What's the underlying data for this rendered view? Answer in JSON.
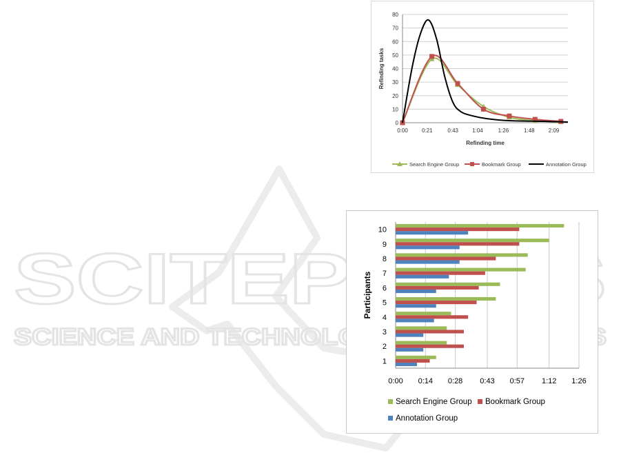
{
  "watermark": {
    "main": "SCITEPRESS",
    "sub": "SCIENCE AND TECHNOLOGY PUBLICATIONS"
  },
  "chart_data": [
    {
      "type": "line",
      "title": "",
      "xlabel": "Refinding time",
      "ylabel": "Refinding tasks",
      "x_ticks": [
        "0:00",
        "0:21",
        "0:43",
        "1:04",
        "1:26",
        "1:48",
        "2:09"
      ],
      "y_ticks": [
        0,
        10,
        20,
        30,
        40,
        50,
        60,
        70,
        80
      ],
      "xlim": [
        "0:00",
        "2:21"
      ],
      "ylim": [
        0,
        80
      ],
      "grid": true,
      "legend": "bottom",
      "series": [
        {
          "name": "Search Engine Group",
          "color": "#9bbb59",
          "marker": "triangle",
          "points": [
            [
              "0:00",
              0
            ],
            [
              "0:25",
              47
            ],
            [
              "0:47",
              28
            ],
            [
              "1:09",
              12
            ],
            [
              "1:31",
              4
            ],
            [
              "1:53",
              1.5
            ],
            [
              "2:15",
              0.5
            ]
          ]
        },
        {
          "name": "Bookmark Group",
          "color": "#c0504d",
          "marker": "square",
          "points": [
            [
              "0:00",
              0
            ],
            [
              "0:25",
              49
            ],
            [
              "0:47",
              29
            ],
            [
              "1:09",
              10
            ],
            [
              "1:31",
              5
            ],
            [
              "1:53",
              2.5
            ],
            [
              "2:15",
              1
            ]
          ]
        },
        {
          "name": "Annotation Group",
          "color": "#000000",
          "marker": "none",
          "points": [
            [
              "0:00",
              0
            ],
            [
              "0:08",
              40
            ],
            [
              "0:15",
              65
            ],
            [
              "0:22",
              76
            ],
            [
              "0:29",
              62
            ],
            [
              "0:36",
              34
            ],
            [
              "0:43",
              15
            ],
            [
              "0:50",
              8
            ],
            [
              "1:00",
              5
            ],
            [
              "1:12",
              3
            ],
            [
              "1:31",
              1.5
            ],
            [
              "2:00",
              1
            ],
            [
              "2:21",
              0.5
            ]
          ]
        }
      ]
    },
    {
      "type": "bar",
      "orientation": "horizontal",
      "title": "",
      "xlabel": "",
      "ylabel": "Participants",
      "categories": [
        "1",
        "2",
        "3",
        "4",
        "5",
        "6",
        "7",
        "8",
        "9",
        "10"
      ],
      "x_ticks": [
        "0:00",
        "0:14",
        "0:28",
        "0:43",
        "0:57",
        "1:12",
        "1:26"
      ],
      "xlim": [
        "0:00",
        "1:26"
      ],
      "grid": true,
      "legend": "bottom",
      "series": [
        {
          "name": "Search Engine Group",
          "color": "#9bbb59",
          "values": [
            "0:19",
            "0:24",
            "0:24",
            "0:26",
            "0:47",
            "0:49",
            "1:01",
            "1:02",
            "1:12",
            "1:19"
          ]
        },
        {
          "name": "Bookmark Group",
          "color": "#c0504d",
          "values": [
            "0:16",
            "0:32",
            "0:32",
            "0:34",
            "0:38",
            "0:39",
            "0:42",
            "0:47",
            "0:58",
            "0:58"
          ]
        },
        {
          "name": "Annotation Group",
          "color": "#4f81bd",
          "values": [
            "0:10",
            "0:13",
            "0:13",
            "0:18",
            "0:19",
            "0:19",
            "0:25",
            "0:30",
            "0:30",
            "0:34"
          ]
        }
      ]
    }
  ]
}
